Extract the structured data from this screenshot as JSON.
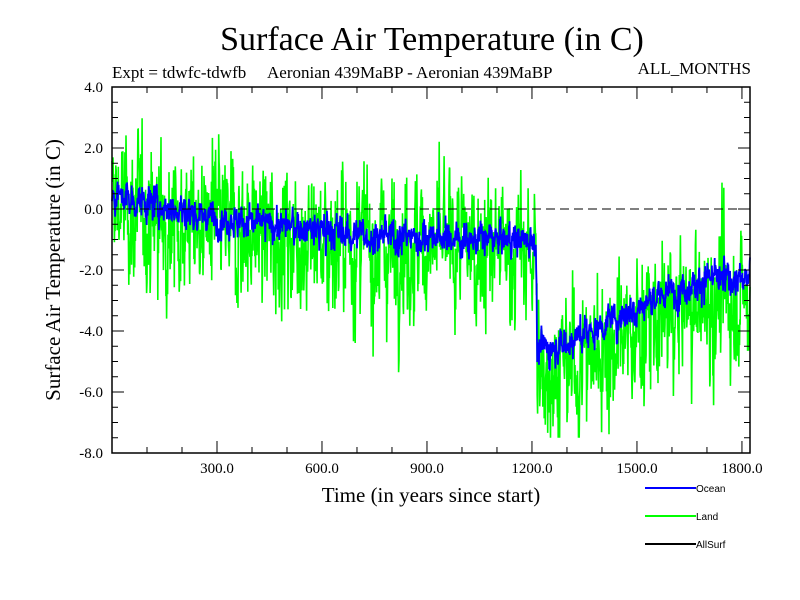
{
  "chart_data": {
    "type": "line",
    "title": "Surface Air Temperature (in C)",
    "subtitle_left": "Expt = tdwfc-tdwfb",
    "subtitle_center": "Aeronian 439MaBP - Aeronian 439MaBP",
    "subtitle_right": "ALL_MONTHS",
    "xlabel": "Time (in years since start)",
    "ylabel": "Surface Air Temperature (in C)",
    "xlim": [
      0,
      1823
    ],
    "ylim": [
      -8.0,
      4.0
    ],
    "x_ticks": [
      300,
      600,
      900,
      1200,
      1500,
      1800
    ],
    "x_tick_labels": [
      "300.0",
      "600.0",
      "900.0",
      "1200.0",
      "1500.0",
      "1800.0"
    ],
    "x_minor_step": 100,
    "y_ticks": [
      4.0,
      2.0,
      0.0,
      -2.0,
      -4.0,
      -6.0,
      -8.0
    ],
    "y_tick_labels": [
      "4.0",
      "2.0",
      "0.0",
      "-2.0",
      "-4.0",
      "-6.0",
      "-8.0"
    ],
    "y_minor_step": 0.5,
    "reference_line": {
      "y": 0.0,
      "style": "dashed",
      "color": "#000000"
    },
    "legend_position": "bottom-right",
    "series": [
      {
        "name": "Land",
        "color": "#00ff00",
        "trend_x": [
          0,
          50,
          150,
          300,
          450,
          600,
          750,
          900,
          1050,
          1200,
          1211,
          1215,
          1300,
          1400,
          1500,
          1600,
          1700,
          1750,
          1823
        ],
        "trend_y": [
          0.3,
          -0.1,
          -0.3,
          -0.6,
          -0.8,
          -1.0,
          -1.2,
          -1.2,
          -1.3,
          -1.4,
          -1.4,
          -5.3,
          -5.2,
          -4.6,
          -4.0,
          -3.5,
          -3.1,
          -3.0,
          -3.0
        ],
        "spread": 1.4,
        "min": -7.5,
        "max": 3.2
      },
      {
        "name": "Ocean",
        "color": "#0000ff",
        "trend_x": [
          0,
          50,
          150,
          300,
          450,
          600,
          750,
          900,
          1050,
          1200,
          1211,
          1215,
          1300,
          1400,
          1500,
          1600,
          1700,
          1750,
          1823
        ],
        "trend_y": [
          0.5,
          0.3,
          0.1,
          -0.3,
          -0.5,
          -0.7,
          -0.9,
          -0.9,
          -1.0,
          -1.0,
          -1.0,
          -4.6,
          -4.4,
          -3.8,
          -3.2,
          -2.7,
          -2.3,
          -2.3,
          -2.3
        ],
        "spread": 0.35,
        "min": -5.3,
        "max": 0.9
      },
      {
        "name": "AllSurf",
        "color": "#000000",
        "trend_x": [],
        "trend_y": [],
        "spread": 0
      }
    ],
    "legend": [
      {
        "name": "Ocean",
        "color": "#0000ff"
      },
      {
        "name": "Land",
        "color": "#00ff00"
      },
      {
        "name": "AllSurf",
        "color": "#000000"
      }
    ]
  }
}
